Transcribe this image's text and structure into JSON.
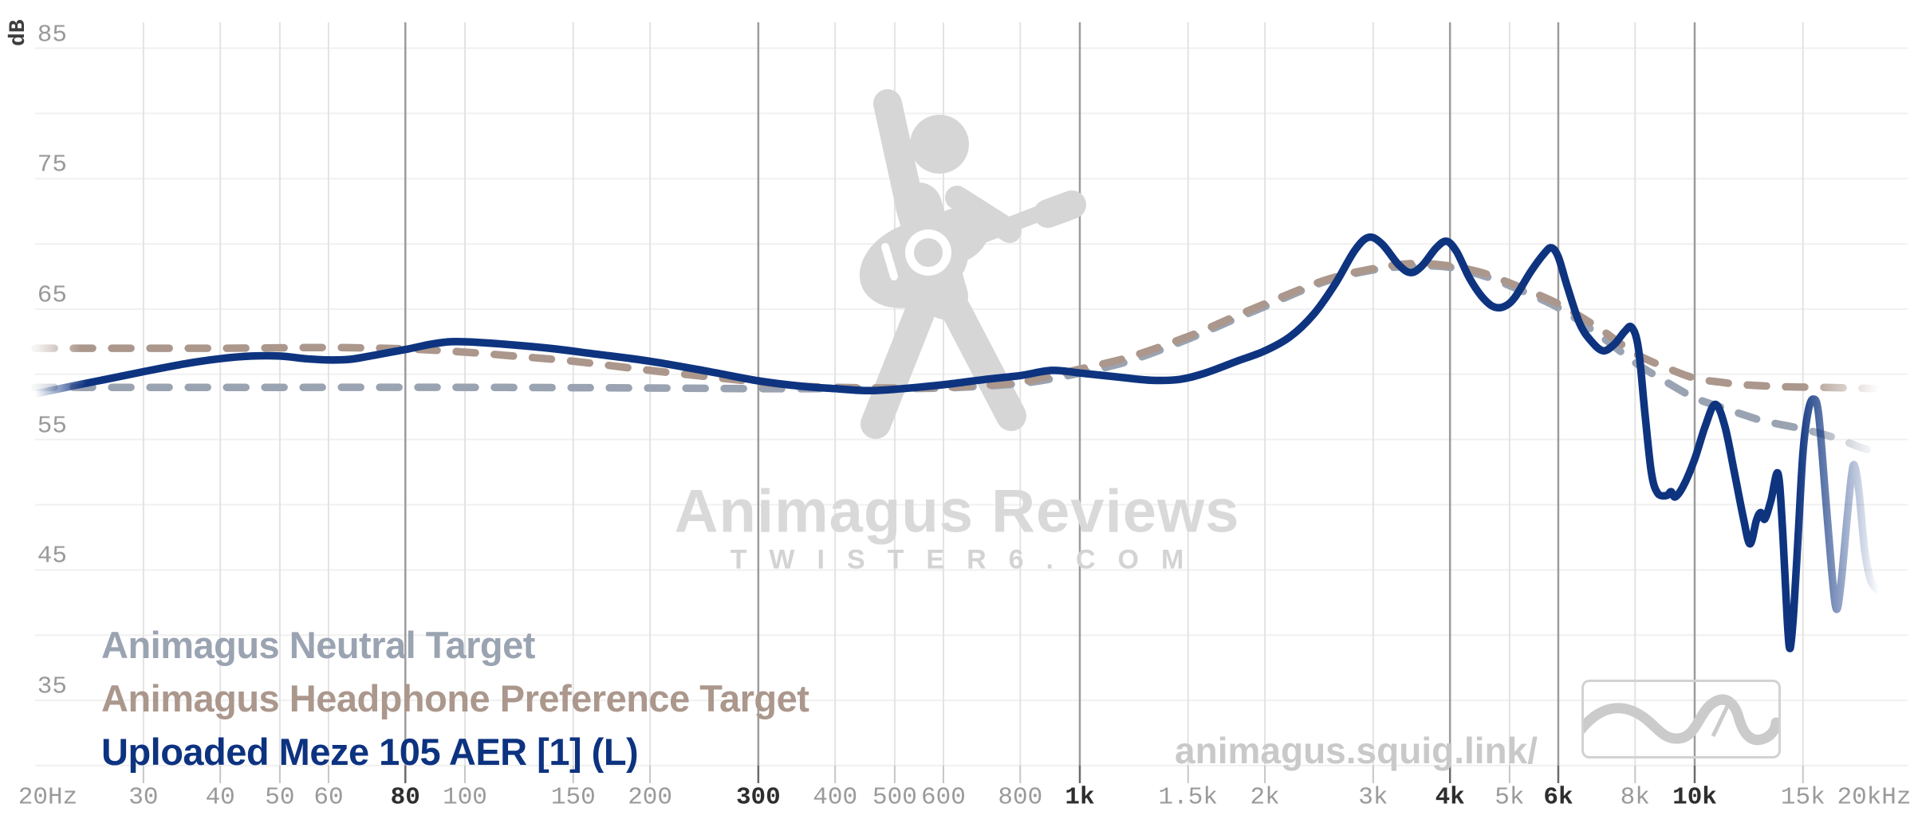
{
  "page": {
    "background": "#ffffff",
    "db_unit_label": "dB"
  },
  "watermark": {
    "title": "Animagus Reviews",
    "subtitle": "TWISTER6.COM",
    "url": "animagus.squig.link/",
    "title_color": "#d9d9d9",
    "figure_color": "#d6d6d6"
  },
  "legend": [
    {
      "label": "Animagus Neutral Target",
      "color": "#9aa3b1"
    },
    {
      "label": "Animagus Headphone Preference Target",
      "color": "#ab978c"
    },
    {
      "label": "Uploaded Meze 105 AER [1] (L)",
      "color": "#0d3380"
    }
  ],
  "chart_data": {
    "type": "line",
    "title": "",
    "xlabel": "frequency (Hz), log scale",
    "ylabel": "dB",
    "x_range": [
      20,
      20000
    ],
    "y_range": [
      30,
      85
    ],
    "grid": true,
    "legend_position": "bottom-left",
    "x_ticks": [
      {
        "f": 20,
        "label": "20Hz",
        "grid": false,
        "major": false
      },
      {
        "f": 30,
        "label": "30",
        "grid": true,
        "major": false
      },
      {
        "f": 40,
        "label": "40",
        "grid": true,
        "major": false
      },
      {
        "f": 50,
        "label": "50",
        "grid": true,
        "major": false
      },
      {
        "f": 60,
        "label": "60",
        "grid": true,
        "major": false
      },
      {
        "f": 80,
        "label": "80",
        "grid": true,
        "major": true
      },
      {
        "f": 100,
        "label": "100",
        "grid": true,
        "major": false
      },
      {
        "f": 150,
        "label": "150",
        "grid": true,
        "major": false
      },
      {
        "f": 200,
        "label": "200",
        "grid": true,
        "major": false
      },
      {
        "f": 300,
        "label": "300",
        "grid": true,
        "major": true
      },
      {
        "f": 400,
        "label": "400",
        "grid": true,
        "major": false
      },
      {
        "f": 500,
        "label": "500",
        "grid": true,
        "major": false
      },
      {
        "f": 600,
        "label": "600",
        "grid": true,
        "major": false
      },
      {
        "f": 800,
        "label": "800",
        "grid": true,
        "major": false
      },
      {
        "f": 1000,
        "label": "1k",
        "grid": true,
        "major": true
      },
      {
        "f": 1500,
        "label": "1.5k",
        "grid": true,
        "major": false
      },
      {
        "f": 2000,
        "label": "2k",
        "grid": true,
        "major": false
      },
      {
        "f": 3000,
        "label": "3k",
        "grid": true,
        "major": false
      },
      {
        "f": 4000,
        "label": "4k",
        "grid": true,
        "major": true
      },
      {
        "f": 5000,
        "label": "5k",
        "grid": true,
        "major": false
      },
      {
        "f": 6000,
        "label": "6k",
        "grid": true,
        "major": true
      },
      {
        "f": 8000,
        "label": "8k",
        "grid": true,
        "major": false
      },
      {
        "f": 10000,
        "label": "10k",
        "grid": true,
        "major": true
      },
      {
        "f": 15000,
        "label": "15k",
        "grid": true,
        "major": false
      },
      {
        "f": 20000,
        "label": "20kHz",
        "grid": false,
        "major": false
      }
    ],
    "y_tick_labels": [
      85,
      75,
      65,
      55,
      45,
      35
    ],
    "y_grid_step": 5,
    "colors": {
      "h_grid": "#f0f0f0",
      "v_grid": "#e3e3e3",
      "v_grid_major": "#9c9c9c",
      "tick": "#c6c6c6",
      "tick_major": "#6a6a6a"
    },
    "series": [
      {
        "name": "Animagus Neutral Target",
        "color": "#9aa3b1",
        "style": "dashed",
        "points": [
          [
            20,
            59.0
          ],
          [
            50,
            59.0
          ],
          [
            100,
            59.0
          ],
          [
            200,
            58.95
          ],
          [
            300,
            58.9
          ],
          [
            400,
            58.9
          ],
          [
            500,
            58.9
          ],
          [
            600,
            58.95
          ],
          [
            700,
            59.1
          ],
          [
            800,
            59.3
          ],
          [
            900,
            59.65
          ],
          [
            1000,
            60.1
          ],
          [
            1200,
            61.0
          ],
          [
            1500,
            62.7
          ],
          [
            1800,
            64.3
          ],
          [
            2000,
            65.2
          ],
          [
            2500,
            67.1
          ],
          [
            3000,
            68.0
          ],
          [
            3500,
            68.3
          ],
          [
            4000,
            68.2
          ],
          [
            4500,
            67.6
          ],
          [
            5000,
            66.8
          ],
          [
            6000,
            65.1
          ],
          [
            7000,
            63.0
          ],
          [
            8000,
            60.9
          ],
          [
            9000,
            59.4
          ],
          [
            10000,
            58.2
          ],
          [
            11000,
            57.5
          ],
          [
            12000,
            56.9
          ],
          [
            13000,
            56.4
          ],
          [
            15000,
            55.8
          ],
          [
            17000,
            55.1
          ],
          [
            18600,
            54.4
          ],
          [
            20000,
            54.0
          ]
        ]
      },
      {
        "name": "Animagus Headphone Preference Target",
        "color": "#ab978c",
        "style": "dashed",
        "points": [
          [
            20,
            62.0
          ],
          [
            40,
            62.0
          ],
          [
            60,
            62.05
          ],
          [
            80,
            61.95
          ],
          [
            100,
            61.7
          ],
          [
            120,
            61.4
          ],
          [
            150,
            61.0
          ],
          [
            200,
            60.3
          ],
          [
            250,
            59.8
          ],
          [
            300,
            59.4
          ],
          [
            350,
            59.1
          ],
          [
            400,
            59.0
          ],
          [
            500,
            58.95
          ],
          [
            600,
            59.0
          ],
          [
            700,
            59.15
          ],
          [
            800,
            59.4
          ],
          [
            900,
            59.9
          ],
          [
            1000,
            60.4
          ],
          [
            1200,
            61.3
          ],
          [
            1500,
            62.9
          ],
          [
            1800,
            64.5
          ],
          [
            2000,
            65.4
          ],
          [
            2500,
            67.2
          ],
          [
            3000,
            68.1
          ],
          [
            3500,
            68.5
          ],
          [
            4000,
            68.3
          ],
          [
            4500,
            67.8
          ],
          [
            5000,
            67.0
          ],
          [
            6000,
            65.4
          ],
          [
            7000,
            63.5
          ],
          [
            8000,
            61.6
          ],
          [
            9000,
            60.5
          ],
          [
            10000,
            59.7
          ],
          [
            11000,
            59.4
          ],
          [
            12000,
            59.2
          ],
          [
            14000,
            59.05
          ],
          [
            16000,
            59.0
          ],
          [
            18000,
            58.95
          ],
          [
            20000,
            58.9
          ]
        ]
      },
      {
        "name": "Uploaded Meze 105 AER [1] (L)",
        "color": "#0e3480",
        "style": "solid",
        "points": [
          [
            20,
            58.5
          ],
          [
            23,
            59.1
          ],
          [
            26,
            59.6
          ],
          [
            30,
            60.2
          ],
          [
            35,
            60.8
          ],
          [
            40,
            61.2
          ],
          [
            45,
            61.4
          ],
          [
            50,
            61.4
          ],
          [
            55,
            61.2
          ],
          [
            60,
            61.1
          ],
          [
            65,
            61.15
          ],
          [
            70,
            61.4
          ],
          [
            80,
            61.9
          ],
          [
            88,
            62.3
          ],
          [
            95,
            62.5
          ],
          [
            105,
            62.45
          ],
          [
            120,
            62.25
          ],
          [
            140,
            61.95
          ],
          [
            160,
            61.6
          ],
          [
            200,
            61.0
          ],
          [
            250,
            60.2
          ],
          [
            300,
            59.5
          ],
          [
            350,
            59.1
          ],
          [
            400,
            58.9
          ],
          [
            450,
            58.75
          ],
          [
            500,
            58.85
          ],
          [
            600,
            59.2
          ],
          [
            700,
            59.6
          ],
          [
            800,
            59.9
          ],
          [
            900,
            60.3
          ],
          [
            1000,
            60.1
          ],
          [
            1150,
            59.8
          ],
          [
            1300,
            59.55
          ],
          [
            1450,
            59.6
          ],
          [
            1600,
            60.1
          ],
          [
            1800,
            61.0
          ],
          [
            2000,
            61.8
          ],
          [
            2200,
            62.9
          ],
          [
            2400,
            64.6
          ],
          [
            2600,
            66.9
          ],
          [
            2800,
            69.5
          ],
          [
            2950,
            70.5
          ],
          [
            3100,
            70.0
          ],
          [
            3300,
            68.4
          ],
          [
            3450,
            67.8
          ],
          [
            3600,
            68.3
          ],
          [
            3800,
            69.7
          ],
          [
            3950,
            70.2
          ],
          [
            4100,
            69.4
          ],
          [
            4300,
            67.4
          ],
          [
            4500,
            66.0
          ],
          [
            4700,
            65.2
          ],
          [
            4900,
            65.2
          ],
          [
            5100,
            65.9
          ],
          [
            5400,
            67.8
          ],
          [
            5700,
            69.3
          ],
          [
            5850,
            69.7
          ],
          [
            6000,
            69.0
          ],
          [
            6200,
            66.8
          ],
          [
            6500,
            63.9
          ],
          [
            6800,
            62.5
          ],
          [
            7100,
            61.8
          ],
          [
            7400,
            62.3
          ],
          [
            7700,
            63.3
          ],
          [
            7900,
            63.6
          ],
          [
            8100,
            62.0
          ],
          [
            8300,
            57.0
          ],
          [
            8500,
            52.5
          ],
          [
            8700,
            50.9
          ],
          [
            9000,
            50.7
          ],
          [
            9150,
            51.0
          ],
          [
            9300,
            50.6
          ],
          [
            9600,
            51.5
          ],
          [
            10000,
            53.5
          ],
          [
            10400,
            56.0
          ],
          [
            10800,
            57.7
          ],
          [
            11200,
            56.0
          ],
          [
            11600,
            52.5
          ],
          [
            12000,
            49.0
          ],
          [
            12300,
            47.0
          ],
          [
            12600,
            48.8
          ],
          [
            12800,
            49.4
          ],
          [
            13000,
            48.9
          ],
          [
            13300,
            50.3
          ],
          [
            13660,
            52.4
          ],
          [
            13900,
            48.0
          ],
          [
            14150,
            41.0
          ],
          [
            14300,
            39.0
          ],
          [
            14500,
            42.0
          ],
          [
            14750,
            48.0
          ],
          [
            15000,
            54.0
          ],
          [
            15300,
            57.2
          ],
          [
            15600,
            58.1
          ],
          [
            15900,
            57.0
          ],
          [
            16300,
            51.0
          ],
          [
            16700,
            45.0
          ],
          [
            17000,
            42.0
          ],
          [
            17300,
            44.0
          ],
          [
            17700,
            49.0
          ],
          [
            18000,
            52.3
          ],
          [
            18200,
            53.0
          ],
          [
            18500,
            51.0
          ],
          [
            18900,
            46.5
          ],
          [
            19300,
            44.3
          ],
          [
            19700,
            43.6
          ],
          [
            20000,
            43.4
          ]
        ]
      }
    ]
  }
}
